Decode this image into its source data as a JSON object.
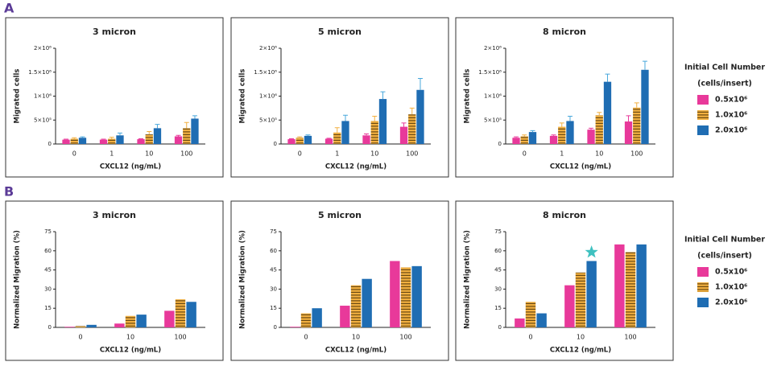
{
  "chart_data": [
    {
      "type": "bar",
      "panel_label": "A",
      "title": "3 micron",
      "xlabel": "CXCL12 (ng/mL)",
      "ylabel": "Migrated cells",
      "categories": [
        "0",
        "1",
        "10",
        "100"
      ],
      "ylim": [
        0,
        2000000
      ],
      "yticks": [
        0,
        {
          "value": 500000,
          "label": "5×10⁵"
        },
        {
          "value": 1000000,
          "label": "1×10⁶"
        },
        {
          "value": 1500000,
          "label": "1.5×10⁶"
        },
        {
          "value": 2000000,
          "label": "2×10⁶"
        }
      ],
      "series": [
        {
          "color": "#e8399a",
          "values": [
            90000,
            90000,
            100000,
            160000
          ],
          "errors": [
            10000,
            10000,
            10000,
            20000
          ]
        },
        {
          "color": "#f2b040",
          "hatch": "horizontal",
          "values": [
            110000,
            110000,
            200000,
            330000
          ],
          "errors": [
            20000,
            30000,
            60000,
            120000
          ]
        },
        {
          "color": "#1f6db3",
          "values": [
            130000,
            180000,
            330000,
            530000
          ],
          "errors": [
            20000,
            50000,
            80000,
            60000
          ]
        }
      ]
    },
    {
      "type": "bar",
      "title": "5 micron",
      "xlabel": "CXCL12 (ng/mL)",
      "ylabel": "Migrated cells",
      "categories": [
        "0",
        "1",
        "10",
        "100"
      ],
      "ylim": [
        0,
        2000000
      ],
      "yticks": [
        0,
        {
          "value": 500000,
          "label": "5×10⁵"
        },
        {
          "value": 1000000,
          "label": "1×10⁶"
        },
        {
          "value": 1500000,
          "label": "1.5×10⁶"
        },
        {
          "value": 2000000,
          "label": "2×10⁶"
        }
      ],
      "series": [
        {
          "color": "#e8399a",
          "values": [
            100000,
            110000,
            180000,
            360000
          ],
          "errors": [
            10000,
            10000,
            30000,
            80000
          ]
        },
        {
          "color": "#f2b040",
          "hatch": "horizontal",
          "values": [
            130000,
            240000,
            480000,
            620000
          ],
          "errors": [
            20000,
            100000,
            100000,
            130000
          ]
        },
        {
          "color": "#1f6db3",
          "values": [
            170000,
            480000,
            940000,
            1130000
          ],
          "errors": [
            20000,
            120000,
            150000,
            240000
          ]
        }
      ]
    },
    {
      "type": "bar",
      "title": "8 micron",
      "xlabel": "CXCL12 (ng/mL)",
      "ylabel": "Migrated cells",
      "legend_title": [
        "Initial Cell Number",
        "(cells/insert)"
      ],
      "categories": [
        "0",
        "1",
        "10",
        "100"
      ],
      "ylim": [
        0,
        2000000
      ],
      "yticks": [
        0,
        {
          "value": 500000,
          "label": "5×10⁵"
        },
        {
          "value": 1000000,
          "label": "1×10⁶"
        },
        {
          "value": 1500000,
          "label": "1.5×10⁶"
        },
        {
          "value": 2000000,
          "label": "2×10⁶"
        }
      ],
      "series": [
        {
          "name": "0.5x10⁶",
          "color": "#e8399a",
          "values": [
            130000,
            170000,
            300000,
            470000
          ],
          "errors": [
            20000,
            20000,
            30000,
            120000
          ]
        },
        {
          "name": "1.0x10⁶",
          "color": "#f2b040",
          "hatch": "horizontal",
          "values": [
            160000,
            360000,
            600000,
            760000
          ],
          "errors": [
            30000,
            80000,
            60000,
            100000
          ]
        },
        {
          "name": "2.0x10⁶",
          "color": "#1f6db3",
          "values": [
            250000,
            480000,
            1300000,
            1550000
          ],
          "errors": [
            30000,
            100000,
            160000,
            180000
          ]
        }
      ]
    },
    {
      "type": "bar",
      "panel_label": "B",
      "title": "3 micron",
      "xlabel": "CXCL12 (ng/mL)",
      "ylabel": "Normalized Migration (%)",
      "categories": [
        "0",
        "10",
        "100"
      ],
      "ylim": [
        0,
        75
      ],
      "yticks": [
        0,
        15,
        30,
        45,
        60,
        75
      ],
      "series": [
        {
          "color": "#e8399a",
          "values": [
            0.5,
            3,
            13
          ]
        },
        {
          "color": "#f2b040",
          "hatch": "horizontal",
          "values": [
            1,
            9,
            22
          ]
        },
        {
          "color": "#1f6db3",
          "values": [
            2,
            10,
            20
          ]
        }
      ]
    },
    {
      "type": "bar",
      "title": "5 micron",
      "xlabel": "CXCL12 (ng/mL)",
      "ylabel": "Normalized Migration (%)",
      "categories": [
        "0",
        "10",
        "100"
      ],
      "ylim": [
        0,
        75
      ],
      "yticks": [
        0,
        15,
        30,
        45,
        60,
        75
      ],
      "series": [
        {
          "color": "#e8399a",
          "values": [
            0.5,
            17,
            52
          ]
        },
        {
          "color": "#f2b040",
          "hatch": "horizontal",
          "values": [
            11,
            33,
            47
          ]
        },
        {
          "color": "#1f6db3",
          "values": [
            15,
            38,
            48
          ]
        }
      ]
    },
    {
      "type": "bar",
      "title": "8 micron",
      "xlabel": "CXCL12 (ng/mL)",
      "ylabel": "Normalized Migration (%)",
      "legend_title": [
        "Initial Cell Number",
        "(cells/insert)"
      ],
      "categories": [
        "0",
        "10",
        "100"
      ],
      "ylim": [
        0,
        75
      ],
      "yticks": [
        0,
        15,
        30,
        45,
        60,
        75
      ],
      "series": [
        {
          "name": "0.5x10⁶",
          "color": "#e8399a",
          "values": [
            7,
            33,
            65
          ]
        },
        {
          "name": "1.0x10⁶",
          "color": "#f2b040",
          "hatch": "horizontal",
          "values": [
            20,
            43,
            59
          ]
        },
        {
          "name": "2.0x10⁶",
          "color": "#1f6db3",
          "values": [
            11,
            52,
            65
          ]
        }
      ]
    }
  ]
}
